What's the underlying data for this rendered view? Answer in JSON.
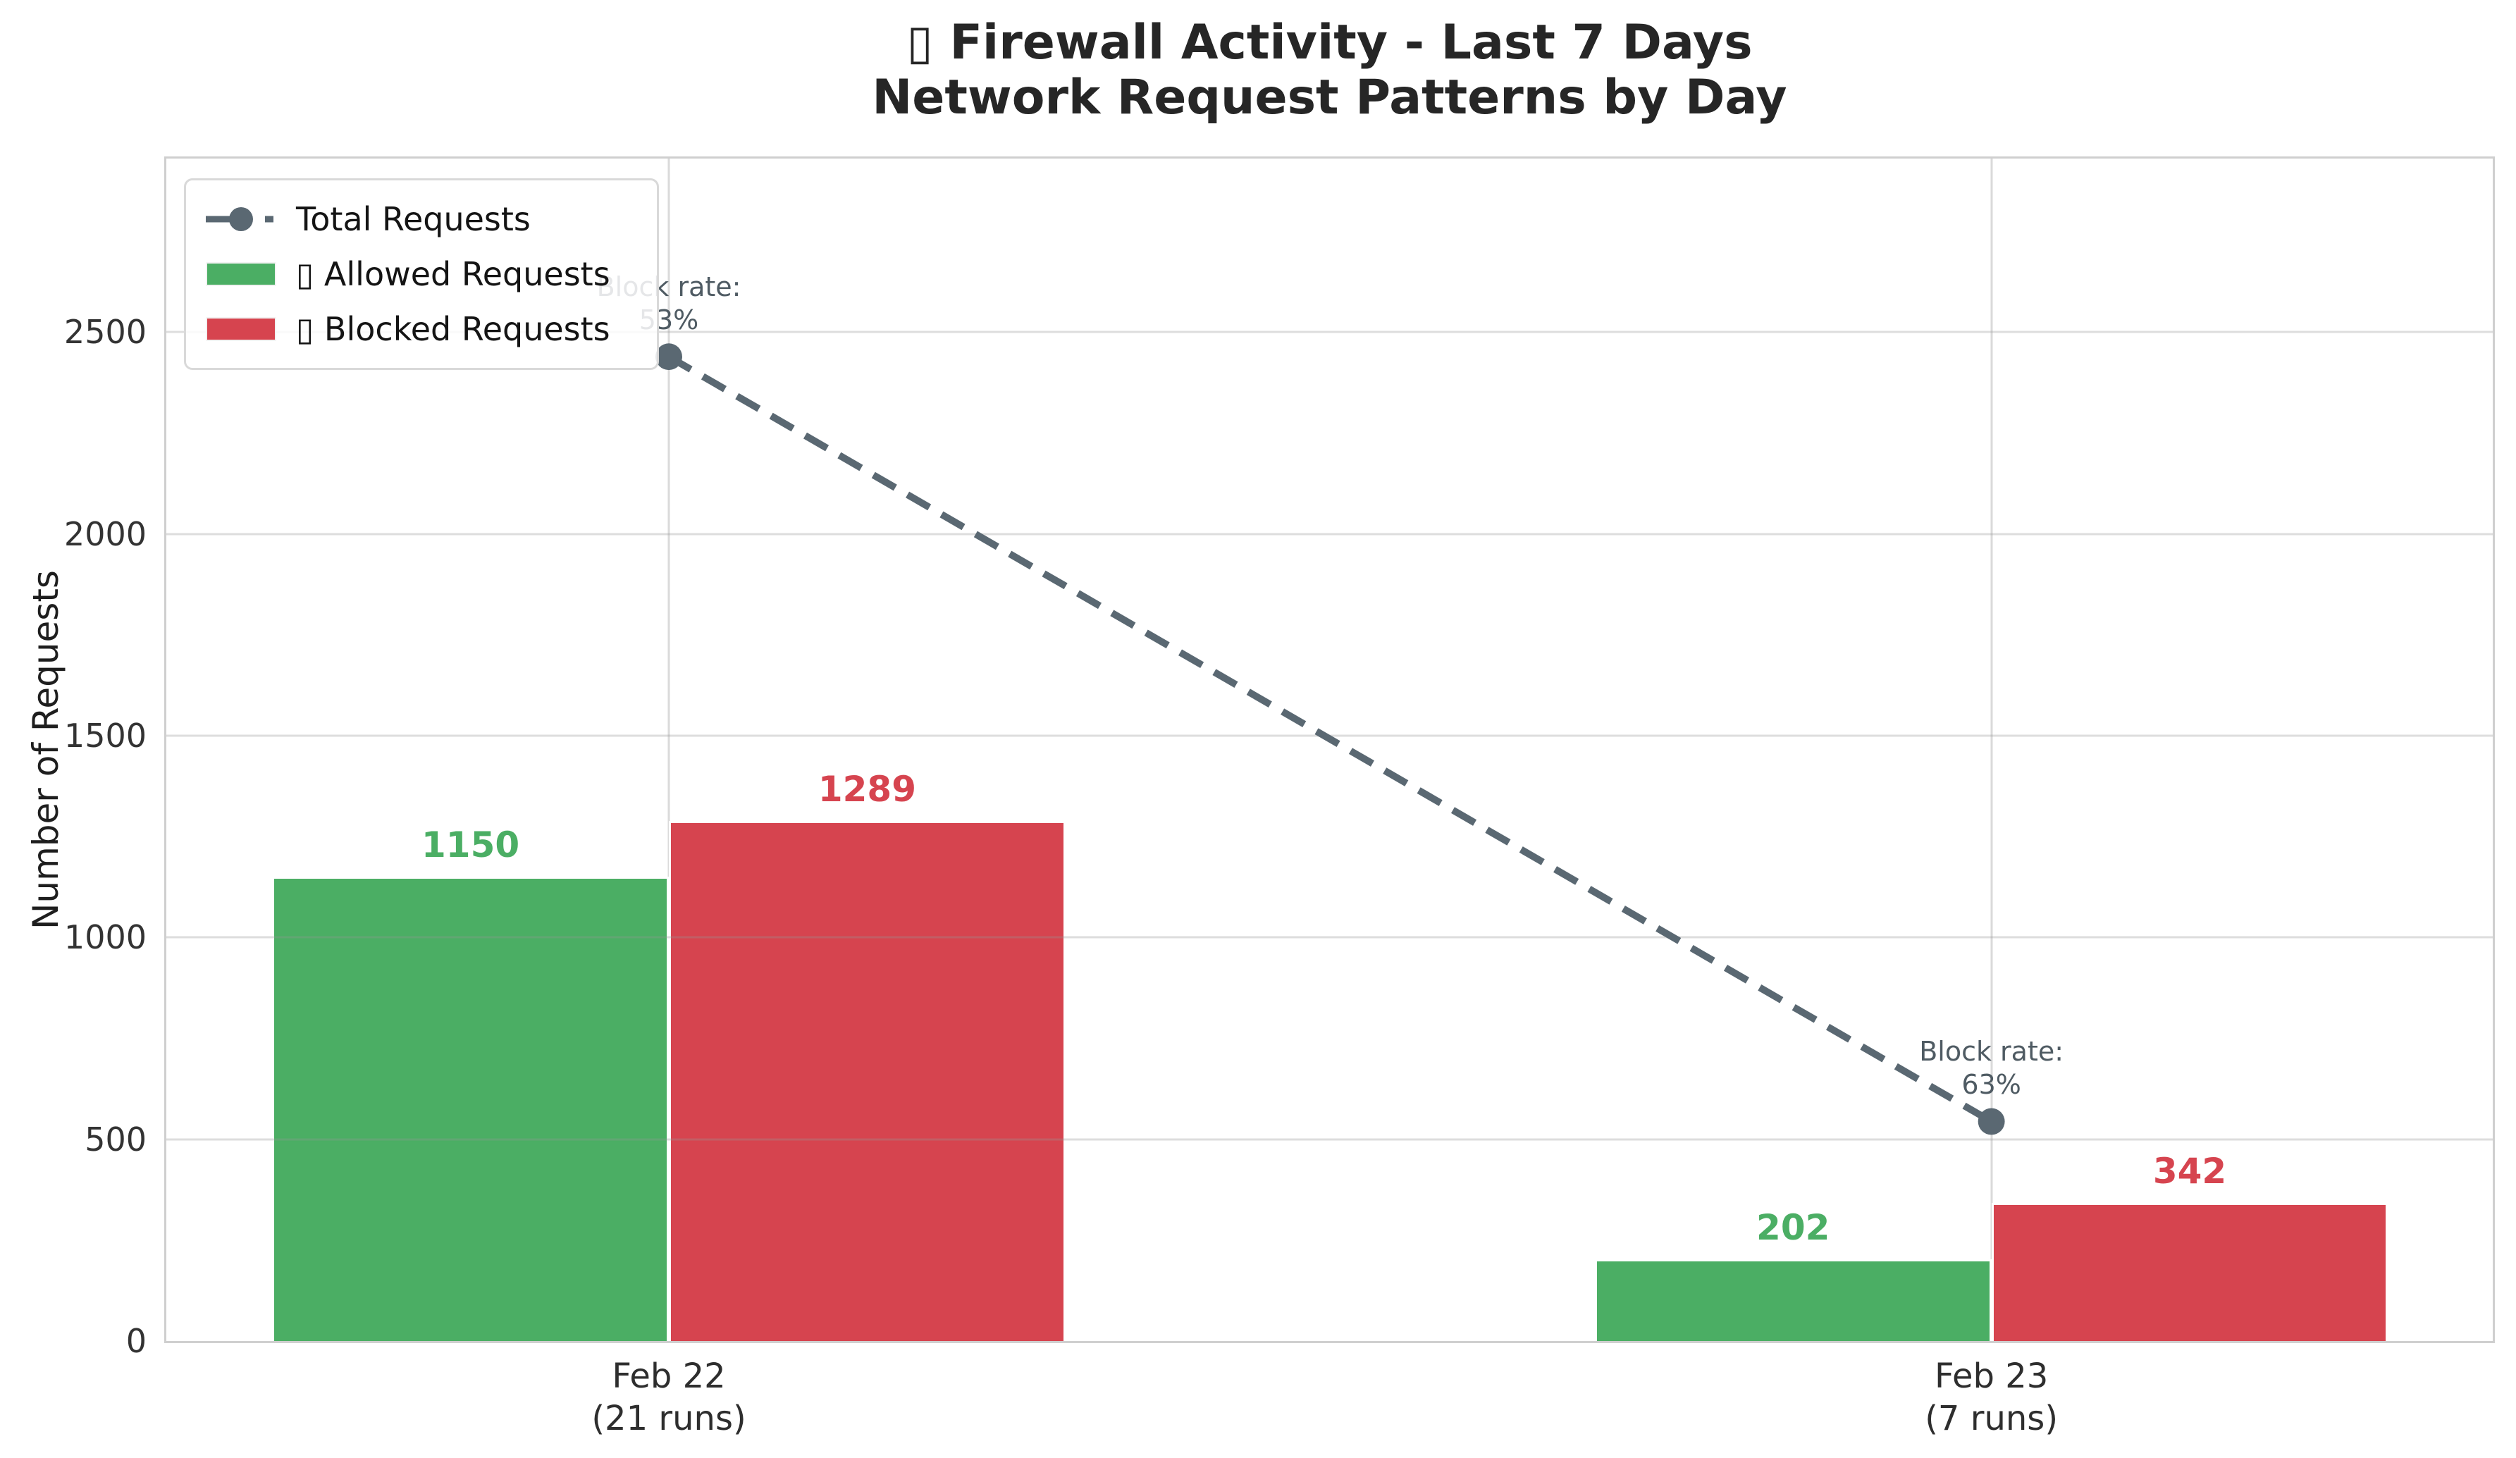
{
  "header": {
    "title_line1": "▯ Firewall Activity - Last 7 Days",
    "title_line2": "Network Request Patterns by Day"
  },
  "axes": {
    "ylabel": "Number of Requests",
    "yticks": [
      "0",
      "500",
      "1000",
      "1500",
      "2000",
      "2500"
    ],
    "xticks": [
      {
        "line1": "Feb 22",
        "line2": "(21 runs)"
      },
      {
        "line1": "Feb 23",
        "line2": "(7 runs)"
      }
    ]
  },
  "legend": {
    "items": [
      {
        "label": "Total Requests",
        "icon": "dashed-line-marker-icon"
      },
      {
        "label": "▯ Allowed Requests",
        "icon": "green-swatch-icon"
      },
      {
        "label": "▯ Blocked Requests",
        "icon": "red-swatch-icon"
      }
    ]
  },
  "annotations": [
    {
      "line1": "Block rate:",
      "line2": "53%"
    },
    {
      "line1": "Block rate:",
      "line2": "63%"
    }
  ],
  "colors": {
    "allowed": "#4bae64",
    "blocked": "#d6444f",
    "total_line": "#5a6872",
    "grid": "#dadada",
    "annotation_text": "#4f5b63"
  },
  "chart_data": {
    "type": "bar",
    "title": "▯ Firewall Activity - Last 7 Days",
    "subtitle": "Network Request Patterns by Day",
    "xlabel": "",
    "ylabel": "Number of Requests",
    "categories": [
      "Feb 22 (21 runs)",
      "Feb 23 (7 runs)"
    ],
    "series": [
      {
        "name": "▯ Allowed Requests",
        "type": "bar",
        "color": "#4bae64",
        "values": [
          1150,
          202
        ]
      },
      {
        "name": "▯ Blocked Requests",
        "type": "bar",
        "color": "#d6444f",
        "values": [
          1289,
          342
        ]
      },
      {
        "name": "Total Requests",
        "type": "line",
        "linestyle": "dashed",
        "marker": "circle",
        "color": "#5a6872",
        "values": [
          2439,
          544
        ]
      }
    ],
    "annotations": [
      {
        "text": "Block rate: 53%",
        "category": "Feb 22 (21 runs)",
        "y": 2439
      },
      {
        "text": "Block rate: 63%",
        "category": "Feb 23 (7 runs)",
        "y": 544
      }
    ],
    "ylim": [
      0,
      2930
    ],
    "yticks": [
      0,
      500,
      1000,
      1500,
      2000,
      2500
    ],
    "grid": true,
    "legend_position": "upper left"
  }
}
